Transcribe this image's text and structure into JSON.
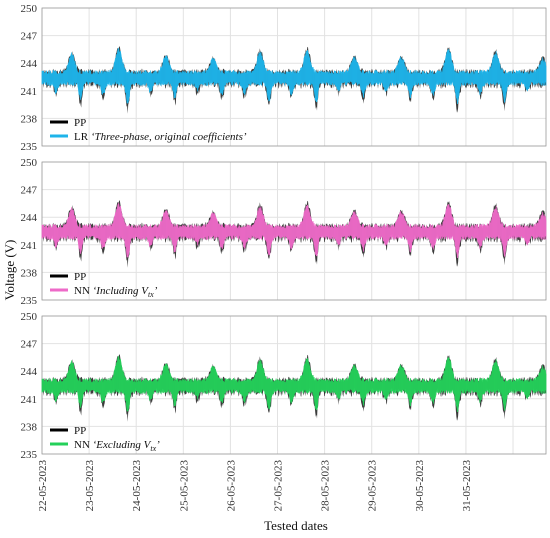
{
  "chart_data": [
    {
      "type": "line",
      "legend_placement": "bottom-left",
      "ylim": [
        235,
        250
      ],
      "yticks": [
        235,
        238,
        241,
        244,
        247,
        250
      ],
      "grid": true,
      "series": [
        {
          "name": "PP",
          "color": "#000000",
          "baseline": 242.3,
          "peak": 245.5,
          "trough": 238.0
        },
        {
          "name": "LR",
          "label_italic": "‘Three-phase, original coefficients’",
          "color": "#1eb4ea",
          "baseline": 242.3,
          "peak": 245.3,
          "trough": 238.5
        }
      ]
    },
    {
      "type": "line",
      "legend_placement": "bottom-left",
      "ylim": [
        235,
        250
      ],
      "yticks": [
        235,
        238,
        241,
        244,
        247,
        250
      ],
      "grid": true,
      "series": [
        {
          "name": "PP",
          "color": "#000000",
          "baseline": 242.3,
          "peak": 245.5,
          "trough": 238.0
        },
        {
          "name": "NN",
          "label_italic": "‘Including V",
          "label_sub": "tx",
          "label_end": "’",
          "color": "#ee6ac8",
          "baseline": 242.3,
          "peak": 245.2,
          "trough": 238.5
        }
      ]
    },
    {
      "type": "line",
      "legend_placement": "bottom-left",
      "ylim": [
        235,
        250
      ],
      "yticks": [
        235,
        238,
        241,
        244,
        247,
        250
      ],
      "grid": true,
      "series": [
        {
          "name": "PP",
          "color": "#000000",
          "baseline": 242.3,
          "peak": 245.5,
          "trough": 238.0
        },
        {
          "name": "NN",
          "label_italic": "‘Excluding V",
          "label_sub": "tx",
          "label_end": "’",
          "color": "#24d05a",
          "baseline": 242.3,
          "peak": 245.3,
          "trough": 238.5
        }
      ]
    }
  ],
  "shared": {
    "ylabel": "Voltage (V)",
    "xlabel": "Tested dates",
    "xticks": [
      "22-05-2023",
      "23-05-2023",
      "24-05-2023",
      "25-05-2023",
      "26-05-2023",
      "27-05-2023",
      "28-05-2023",
      "29-05-2023",
      "30-05-2023",
      "31-05-2023"
    ],
    "days": 10.7
  }
}
